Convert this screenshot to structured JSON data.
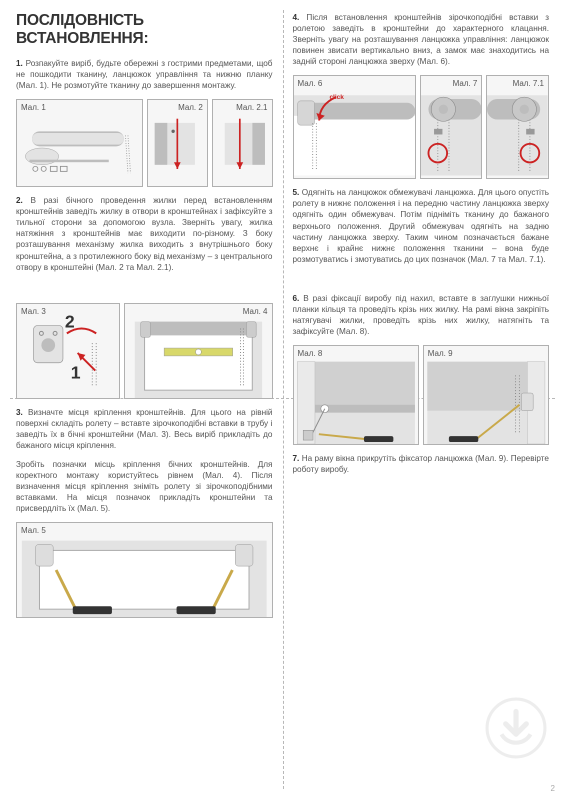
{
  "title": "ПОСЛІДОВНІСТЬ ВСТАНОВЛЕННЯ:",
  "steps": {
    "s1": "1. Розпакуйте виріб, будьте обережні з гострими предметами, щоб не пошкодити тканину, ланцюжок управління та нижню планку (Мал. 1). Не розмотуйте тканину до завершення монтажу.",
    "s2": "2. В разі бічного проведення жилки перед встановленням кронштейнів заведіть жилку в отвори в кронштейнах і зафіксуйте з тильної сторони за допомогою вузла. Зверніть увагу, жилка натяжіння з кронштейнів має виходити по-різному. З боку розташування механізму жилка виходить з внутрішнього боку кронштейна, а з протилежного боку від механізму – з центрального отвору в кронштейні (Мал. 2 та Мал. 2.1).",
    "s3a": "3. Визначте місця кріплення кронштейнів. Для цього на рівній поверхні складіть ролету – вставте зірочкоподібні вставки в трубу і заведіть їх в бічні кронштейни (Мал. 3). Весь виріб прикладіть до бажаного місця кріплення.",
    "s3b": "Зробіть позначки місць кріплення бічних кронштейнів. Для коректного монтажу користуйтесь рівнем (Мал. 4). Після визначення місця кріплення зніміть ролету зі зірочкоподібними вставками. На місця позначок прикладіть кронштейни та присвердліть їх (Мал. 5).",
    "s4": "4. Після встановлення кронштейнів зірочкоподібні вставки з ролетою заведіть в кронштейни до характерного клацання. Зверніть увагу на розташування ланцюжка управління: ланцюжок повинен звисати вертикально вниз, а замок має знаходитись на задній стороні ланцюжка зверху (Мал. 6).",
    "s5": "5. Одягніть на ланцюжок обмежувачі ланцюжка. Для цього опустіть ролету в нижнє положення і на передню частину ланцюжка зверху одягніть один обмежувач. Потім підніміть тканину до бажаного верхнього положення. Другий обмежувач одягніть на задню частину ланцюжка зверху. Таким чином позначається бажане верхнє і крайнє нижнє положення тканини – вона буде розмотуватись і змотуватись до цих позначок (Мал. 7 та Мал. 7.1).",
    "s6": "6. В разі фіксації виробу під нахил, вставте в заглушки нижньої планки кільця та проведіть крізь них жилку. На рамі вікна закріпіть натягувачі жилки, проведіть крізь них жилку, натягніть та зафіксуйте (Мал. 8).",
    "s7": "7. На раму вікна прикрутіть фіксатор ланцюжка (Мал. 9). Перевірте роботу виробу."
  },
  "labels": {
    "m1": "Мал. 1",
    "m2": "Мал. 2",
    "m21": "Мал. 2.1",
    "m3": "Мал. 3",
    "m4": "Мал. 4",
    "m5": "Мал. 5",
    "m6": "Мал. 6",
    "m7": "Мал. 7",
    "m71": "Мал. 7.1",
    "m8": "Мал. 8",
    "m9": "Мал. 9",
    "click": "click"
  },
  "nums": {
    "n1": "1",
    "n2": "2"
  },
  "page_number": "2",
  "colors": {
    "text": "#555555",
    "heading": "#333333",
    "border": "#b0b0b0",
    "dash": "#b8b8b8",
    "figbg": "#f6f6f6",
    "illgray": "#e3e3e3",
    "illdark": "#bdbdbd",
    "illline": "#8c8c8c",
    "red": "#cc2222",
    "watermark": "#bbbbbb"
  }
}
